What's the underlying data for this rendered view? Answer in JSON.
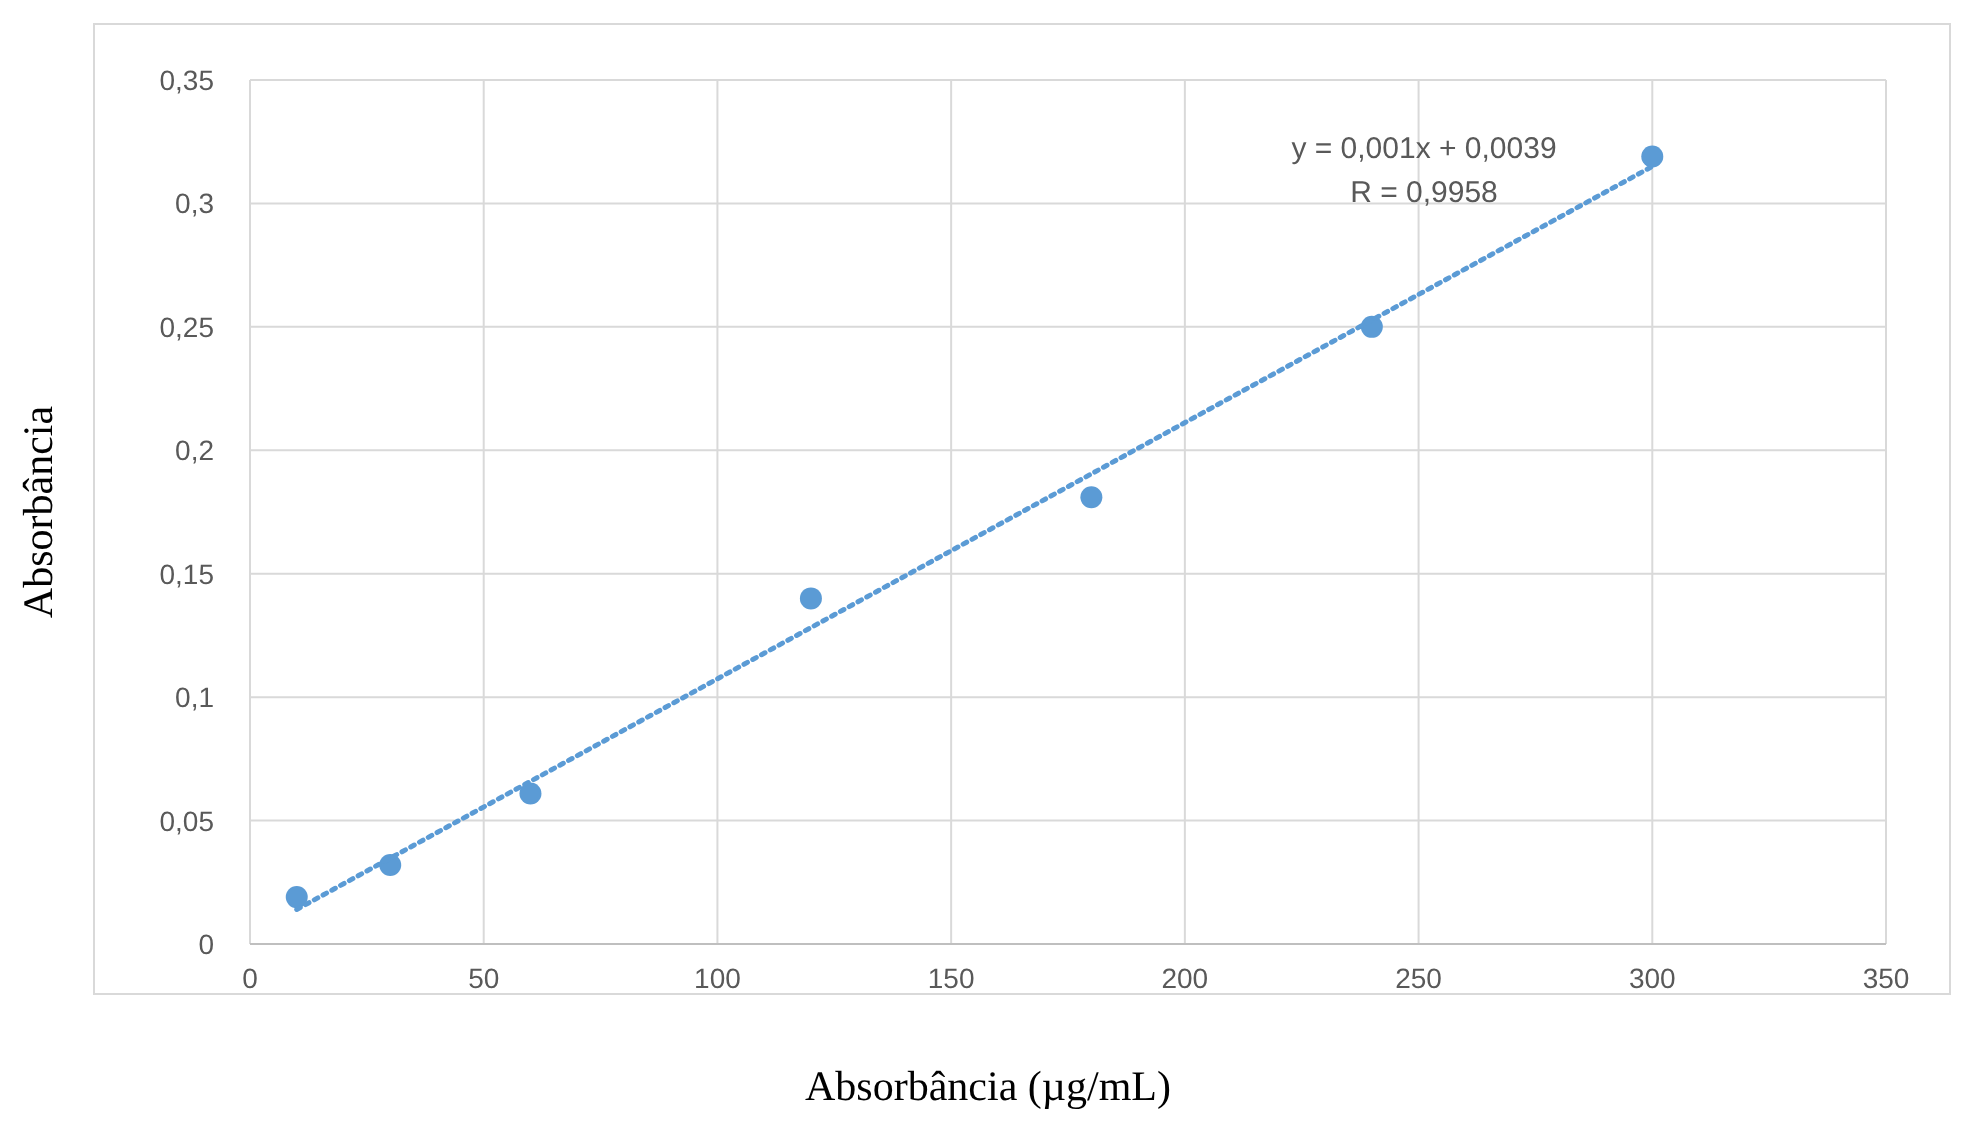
{
  "chart_data": {
    "type": "scatter",
    "xlabel": "Absorbância (µg/mL)",
    "ylabel": "Absorbância",
    "xlim": [
      0,
      350
    ],
    "xticks": [
      {
        "value": 0,
        "label": "0"
      },
      {
        "value": 50,
        "label": "50"
      },
      {
        "value": 100,
        "label": "100"
      },
      {
        "value": 150,
        "label": "150"
      },
      {
        "value": 200,
        "label": "200"
      },
      {
        "value": 250,
        "label": "250"
      },
      {
        "value": 300,
        "label": "300"
      },
      {
        "value": 350,
        "label": "350"
      }
    ],
    "ylim": [
      0,
      0.35
    ],
    "yticks": [
      {
        "value": 0,
        "label": "0"
      },
      {
        "value": 0.05,
        "label": "0,05"
      },
      {
        "value": 0.1,
        "label": "0,1"
      },
      {
        "value": 0.15,
        "label": "0,15"
      },
      {
        "value": 0.2,
        "label": "0,2"
      },
      {
        "value": 0.25,
        "label": "0,25"
      },
      {
        "value": 0.3,
        "label": "0,3"
      },
      {
        "value": 0.35,
        "label": "0,35"
      }
    ],
    "grid": true,
    "marker": "circle",
    "series": [
      {
        "color": "#5b9bd5",
        "x": [
          10,
          30,
          60,
          120,
          180,
          240,
          300
        ],
        "values": [
          0.019,
          0.032,
          0.061,
          0.14,
          0.181,
          0.25,
          0.319
        ]
      },
      {
        "type": "line",
        "color": "#5b9bd5",
        "line_style": "dotted",
        "marker": "none",
        "x": [
          10,
          300
        ],
        "values": [
          0.014,
          0.315
        ]
      }
    ],
    "annotations": [
      "y = 0,001x + 0,0039",
      "R = 0,9958"
    ]
  }
}
